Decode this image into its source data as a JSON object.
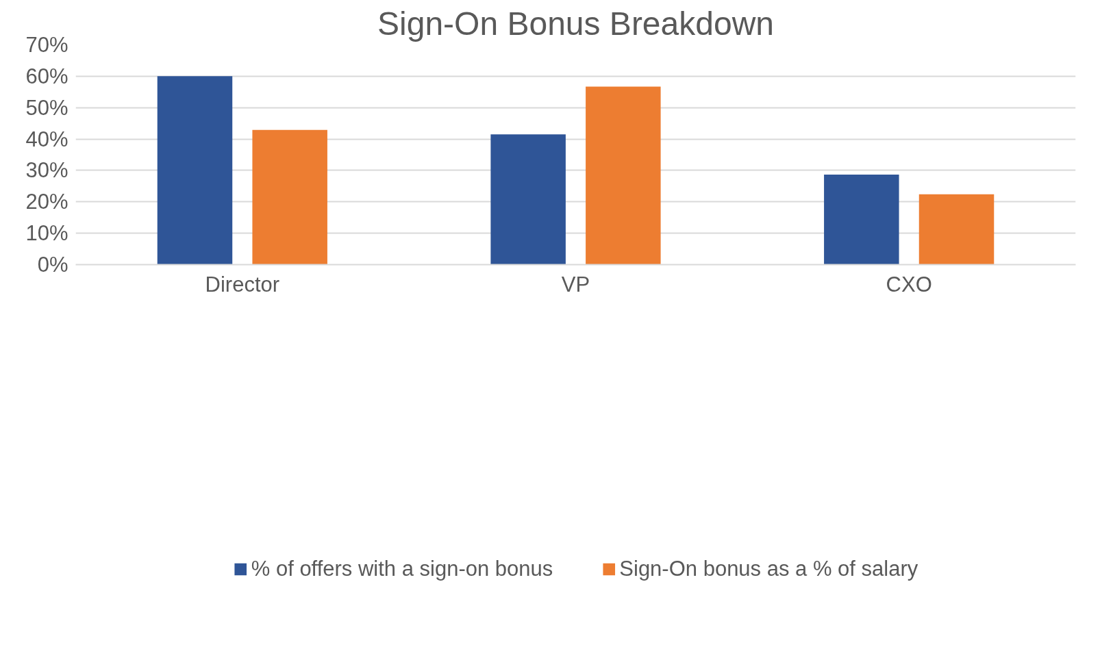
{
  "chart_data": {
    "type": "bar",
    "title": "Sign-On Bonus Breakdown",
    "categories": [
      "Director",
      "VP",
      "CXO"
    ],
    "series": [
      {
        "name": "% of offers with a sign-on bonus",
        "color": "#2f5597",
        "values": [
          60,
          41.5,
          28.7
        ]
      },
      {
        "name": "Sign-On bonus as a % of salary",
        "color": "#ed7d31",
        "values": [
          42.9,
          56.7,
          22.4
        ]
      }
    ],
    "ylim": [
      0,
      70
    ],
    "yticks": [
      {
        "value": 0,
        "label": "0%"
      },
      {
        "value": 10,
        "label": "10%"
      },
      {
        "value": 20,
        "label": "20%"
      },
      {
        "value": 30,
        "label": "30%"
      },
      {
        "value": 40,
        "label": "40%"
      },
      {
        "value": 50,
        "label": "50%"
      },
      {
        "value": 60,
        "label": "60%"
      },
      {
        "value": 70,
        "label": "70%"
      }
    ],
    "grid": "y",
    "legend": "bottom"
  }
}
